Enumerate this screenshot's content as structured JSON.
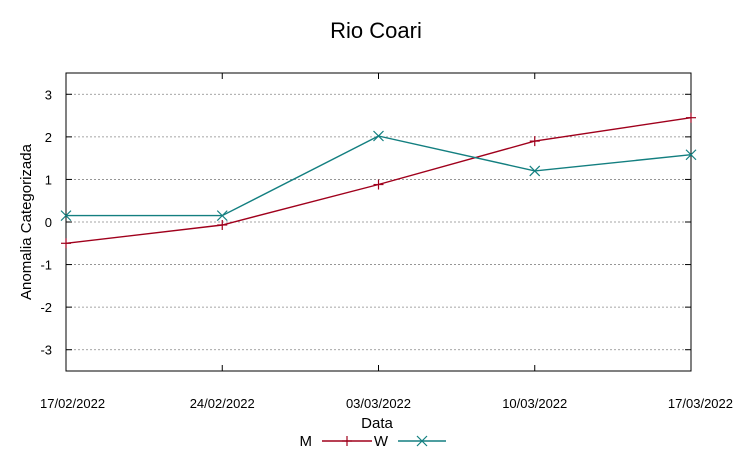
{
  "chart_data": {
    "type": "line",
    "title": "Rio Coari",
    "xlabel": "Data",
    "ylabel": "Anomalia Categorizada",
    "categories": [
      "17/02/2022",
      "24/02/2022",
      "03/03/2022",
      "10/03/2022",
      "17/03/2022"
    ],
    "ylim": [
      -3.5,
      3.5
    ],
    "yticks": [
      -3,
      -2,
      -1,
      0,
      1,
      2,
      3
    ],
    "grid": true,
    "legend_position": "bottom",
    "series": [
      {
        "name": "M",
        "color": "#a0001c",
        "marker": "plus",
        "values": [
          -0.5,
          -0.07,
          0.88,
          1.9,
          2.45
        ]
      },
      {
        "name": "W",
        "color": "#137f80",
        "marker": "cross",
        "values": [
          0.15,
          0.15,
          2.02,
          1.2,
          1.58
        ]
      }
    ]
  }
}
